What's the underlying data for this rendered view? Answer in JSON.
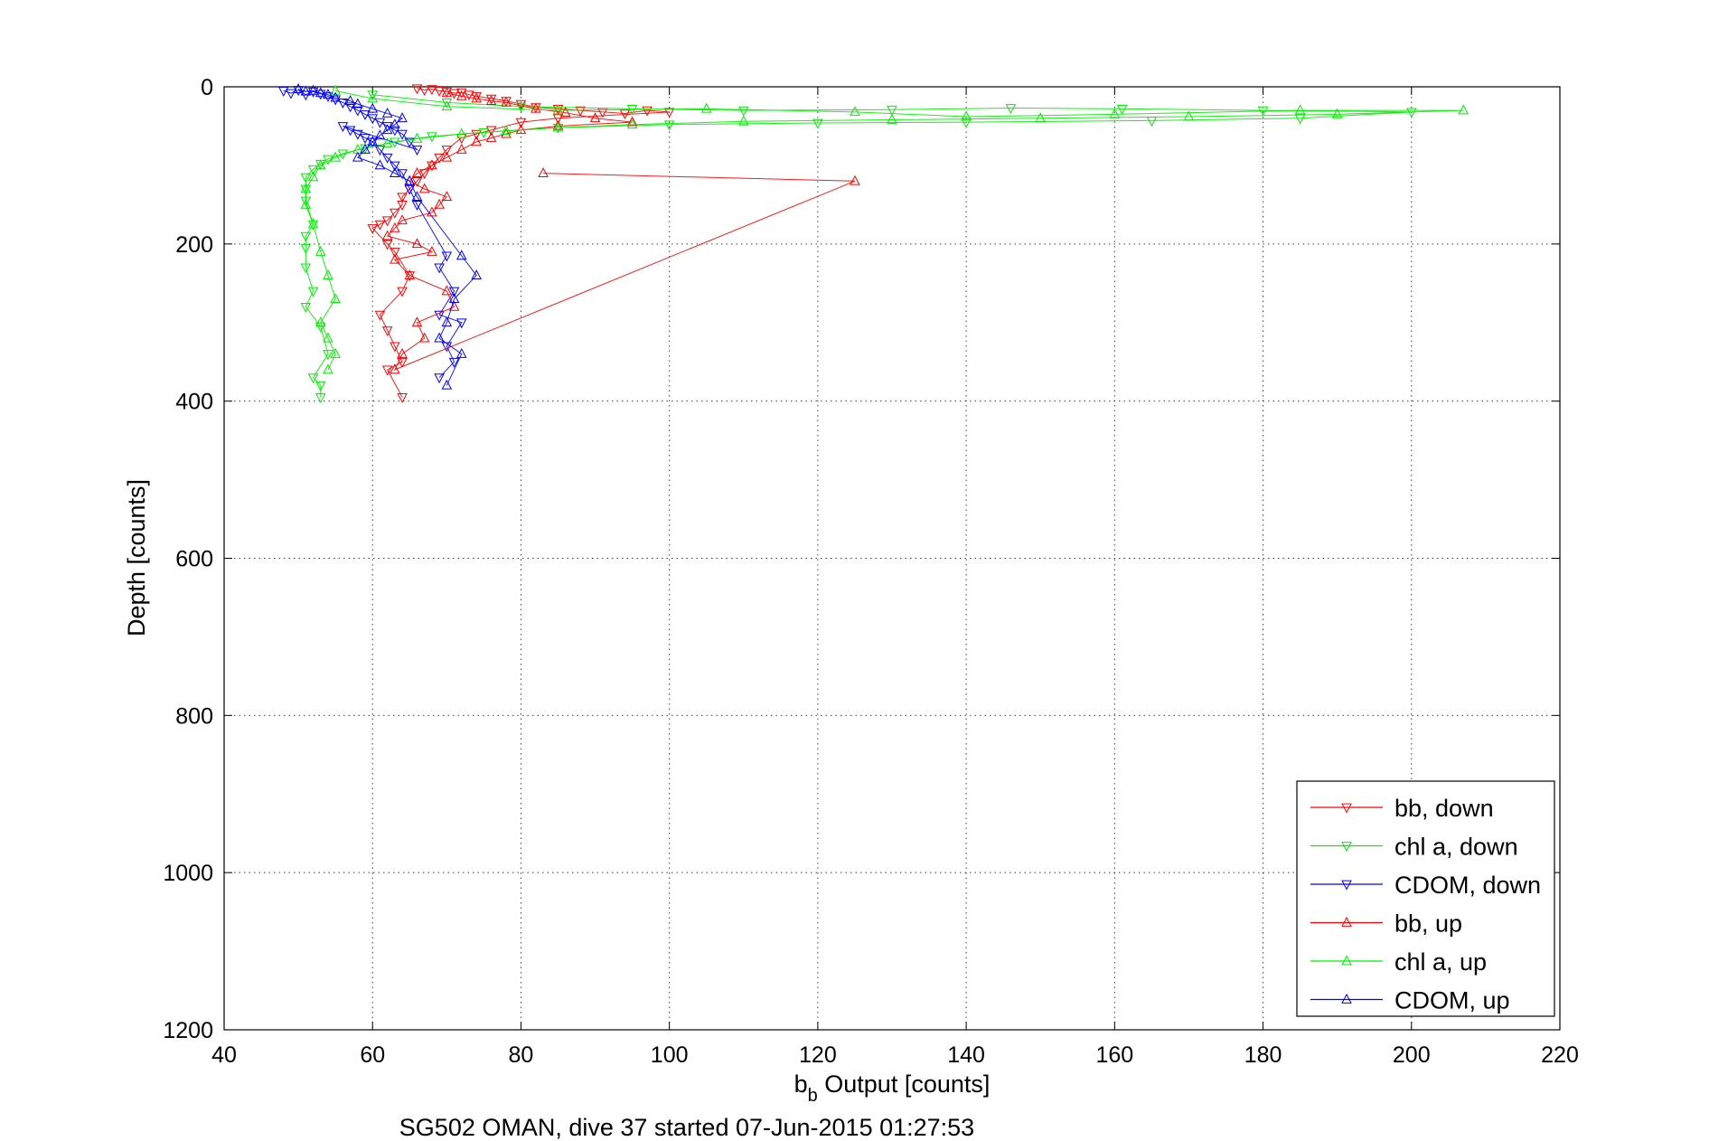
{
  "chart_data": {
    "type": "scatter",
    "title": "",
    "xlabel": "b_b Output [counts]",
    "xlabel_main": "b",
    "xlabel_sub": "b",
    "xlabel_rest": " Output [counts]",
    "ylabel": "Depth [counts]",
    "footer": "SG502 OMAN, dive 37 started 07-Jun-2015 01:27:53",
    "xlim": [
      40,
      220
    ],
    "ylim": [
      0,
      1200
    ],
    "y_reversed": true,
    "grid": true,
    "xticks": [
      "40",
      "60",
      "80",
      "100",
      "120",
      "140",
      "160",
      "180",
      "200",
      "220"
    ],
    "yticks": [
      "0",
      "200",
      "400",
      "600",
      "800",
      "1000",
      "1200"
    ],
    "legend_position": "bottom-right",
    "series": [
      {
        "name": "bb, down",
        "color": "#ff0000",
        "marker": "triangle-down",
        "x": [
          66,
          67,
          68,
          69,
          70,
          71,
          72,
          73,
          74,
          76,
          78,
          80,
          82,
          85,
          88,
          91,
          94,
          97,
          100,
          85,
          80,
          76,
          74,
          72,
          70,
          69,
          68,
          67,
          66,
          65,
          64,
          64,
          63,
          62,
          61,
          60,
          62,
          63,
          65,
          64,
          61,
          62,
          63,
          64,
          62,
          64
        ],
        "y": [
          2,
          4,
          3,
          5,
          6,
          8,
          7,
          10,
          12,
          15,
          18,
          22,
          26,
          28,
          30,
          32,
          34,
          30,
          32,
          40,
          45,
          55,
          60,
          65,
          80,
          90,
          100,
          110,
          120,
          130,
          140,
          150,
          160,
          170,
          175,
          180,
          200,
          210,
          240,
          260,
          290,
          310,
          330,
          350,
          360,
          395
        ]
      },
      {
        "name": "chl a, down",
        "color": "#00ee00",
        "marker": "triangle-down",
        "x": [
          60,
          70,
          80,
          95,
          110,
          130,
          146,
          161,
          180,
          200,
          185,
          165,
          140,
          120,
          100,
          85,
          75,
          68,
          63,
          59,
          56,
          54,
          53,
          52,
          51,
          51,
          51,
          52,
          51,
          51,
          51,
          52,
          51,
          53,
          54,
          52,
          53,
          53
        ],
        "y": [
          10,
          20,
          25,
          28,
          30,
          29,
          27,
          28,
          30,
          32,
          40,
          43,
          45,
          46,
          48,
          52,
          58,
          63,
          70,
          78,
          85,
          92,
          98,
          105,
          115,
          130,
          145,
          175,
          190,
          205,
          230,
          260,
          280,
          305,
          340,
          370,
          380,
          395
        ]
      },
      {
        "name": "CDOM, down",
        "color": "#0000ff",
        "marker": "triangle-down",
        "x": [
          48,
          49,
          50,
          51,
          52,
          53,
          54,
          55,
          56,
          57,
          58,
          59,
          60,
          61,
          62,
          63,
          64,
          65,
          66,
          56,
          57,
          58,
          59,
          60,
          61,
          62,
          63,
          64,
          65,
          66,
          70,
          69,
          71,
          69,
          72,
          70,
          71,
          69
        ],
        "y": [
          5,
          8,
          4,
          10,
          6,
          9,
          12,
          16,
          20,
          25,
          30,
          35,
          40,
          45,
          50,
          55,
          60,
          70,
          80,
          50,
          55,
          60,
          65,
          70,
          80,
          90,
          100,
          110,
          130,
          150,
          215,
          230,
          260,
          290,
          300,
          330,
          350,
          370
        ]
      },
      {
        "name": "bb, up",
        "color": "#ff0000",
        "marker": "triangle-up",
        "x": [
          70,
          72,
          74,
          76,
          78,
          82,
          86,
          90,
          95,
          85,
          80,
          78,
          76,
          74,
          72,
          70,
          68,
          66,
          65,
          67,
          70,
          69,
          68,
          64,
          63,
          62,
          66,
          68,
          63,
          65,
          70,
          71,
          66,
          67,
          64,
          63,
          125,
          83
        ],
        "y": [
          8,
          12,
          15,
          18,
          20,
          28,
          33,
          40,
          45,
          50,
          55,
          60,
          65,
          70,
          80,
          90,
          100,
          110,
          120,
          130,
          140,
          150,
          160,
          170,
          180,
          190,
          200,
          210,
          220,
          240,
          260,
          280,
          300,
          320,
          340,
          360,
          120,
          110
        ]
      },
      {
        "name": "chl a, up",
        "color": "#00ee00",
        "marker": "triangle-up",
        "x": [
          55,
          60,
          70,
          85,
          105,
          125,
          140,
          160,
          185,
          207,
          190,
          170,
          150,
          130,
          110,
          95,
          85,
          78,
          72,
          66,
          62,
          58,
          55,
          53,
          52,
          51,
          51,
          52,
          53,
          54,
          55,
          53,
          54,
          55,
          54
        ],
        "y": [
          5,
          15,
          25,
          30,
          28,
          32,
          38,
          35,
          30,
          30,
          35,
          38,
          40,
          42,
          44,
          48,
          52,
          56,
          60,
          66,
          72,
          80,
          90,
          100,
          115,
          130,
          150,
          175,
          210,
          240,
          270,
          300,
          320,
          340,
          360
        ]
      },
      {
        "name": "CDOM, up",
        "color": "#0000ff",
        "marker": "triangle-up",
        "x": [
          50,
          51,
          52,
          53,
          54,
          55,
          57,
          58,
          60,
          62,
          64,
          63,
          62,
          61,
          60,
          59,
          58,
          61,
          63,
          65,
          66,
          72,
          74,
          71,
          70,
          69,
          72,
          70
        ],
        "y": [
          3,
          6,
          5,
          8,
          10,
          14,
          18,
          22,
          28,
          34,
          40,
          48,
          55,
          62,
          70,
          80,
          90,
          100,
          110,
          120,
          140,
          215,
          240,
          270,
          300,
          320,
          340,
          380
        ]
      }
    ]
  }
}
